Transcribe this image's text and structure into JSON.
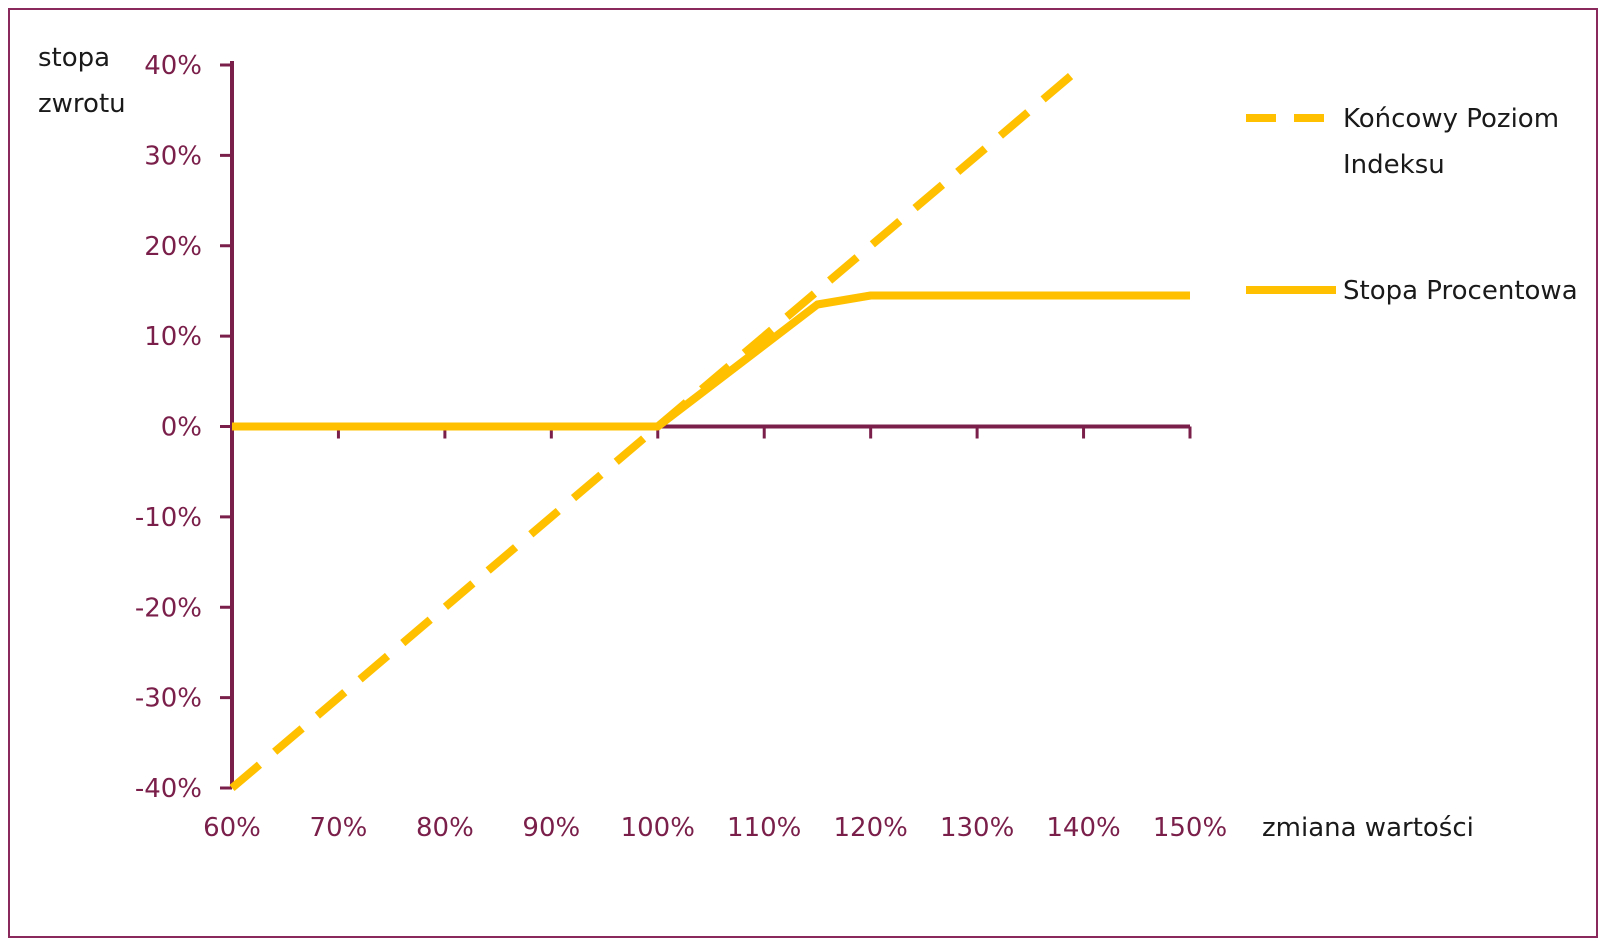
{
  "chart_data": {
    "type": "line",
    "xlabel": "zmiana wartości",
    "ylabel_lines": [
      "stopa",
      "zwrotu"
    ],
    "x_ticks": [
      "60%",
      "70%",
      "80%",
      "90%",
      "100%",
      "110%",
      "120%",
      "130%",
      "140%",
      "150%"
    ],
    "y_ticks": [
      "40%",
      "30%",
      "20%",
      "10%",
      "0%",
      "-10%",
      "-20%",
      "-30%",
      "-40%"
    ],
    "xlim": [
      60,
      150
    ],
    "ylim": [
      -40,
      40
    ],
    "legend_position": "right",
    "series": [
      {
        "name_lines": [
          "Końcowy Poziom",
          "Indeksu"
        ],
        "style": "dashed",
        "color": "#ffc000",
        "x": [
          60,
          140
        ],
        "y": [
          -40,
          40
        ]
      },
      {
        "name_lines": [
          "Stopa Procentowa"
        ],
        "style": "solid",
        "color": "#ffc000",
        "x": [
          60,
          100,
          115,
          120,
          150
        ],
        "y": [
          0,
          0,
          13.5,
          14.5,
          14.5
        ]
      }
    ],
    "axis_color": "#7a1f4a"
  }
}
